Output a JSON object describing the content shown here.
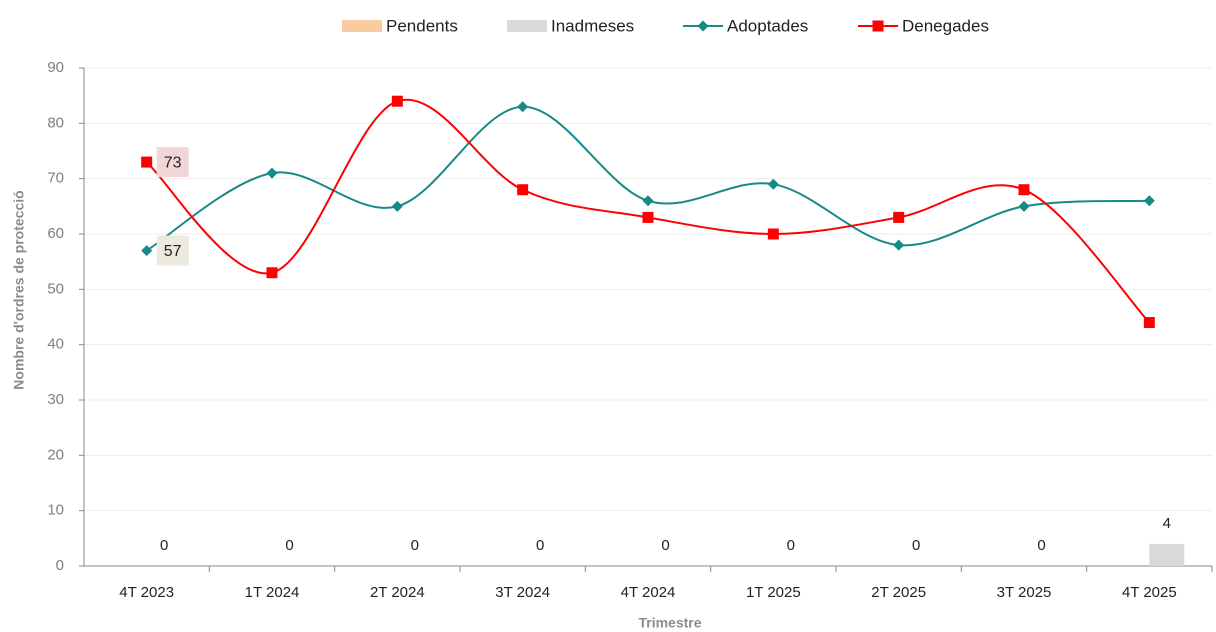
{
  "chart_data": {
    "type": "bar-line",
    "x_label": "Trimestre",
    "y_label": "Nombre d'ordres de protecció",
    "categories": [
      "4T 2023",
      "1T 2024",
      "2T 2024",
      "3T 2024",
      "4T 2024",
      "1T 2025",
      "2T 2025",
      "3T 2025",
      "4T 2025"
    ],
    "series": [
      {
        "name": "Pendents",
        "kind": "bar",
        "color": "#f8cba0",
        "values": [
          0,
          0,
          0,
          0,
          0,
          0,
          0,
          0,
          0
        ],
        "label_points": []
      },
      {
        "name": "Inadmeses",
        "kind": "bar",
        "color": "#d9d9d9",
        "values": [
          0,
          0,
          0,
          0,
          0,
          0,
          0,
          0,
          4
        ],
        "label_points": [
          0,
          1,
          2,
          3,
          4,
          5,
          6,
          7,
          8
        ]
      },
      {
        "name": "Adoptades",
        "kind": "line",
        "marker": "diamond",
        "color": "#178a87",
        "values": [
          57,
          71,
          65,
          83,
          66,
          69,
          58,
          65,
          66
        ],
        "label_points": [
          0
        ],
        "label_fill": "#ece9df"
      },
      {
        "name": "Denegades",
        "kind": "line",
        "marker": "square",
        "color": "#ff0000",
        "values": [
          73,
          53,
          84,
          68,
          63,
          60,
          63,
          68,
          44
        ],
        "label_points": [
          0
        ],
        "label_fill": "#f2d6d6"
      }
    ],
    "ylim": [
      0,
      90
    ],
    "yticks": [
      0,
      10,
      20,
      30,
      40,
      50,
      60,
      70,
      80,
      90
    ],
    "grid": true,
    "legend": "top"
  }
}
